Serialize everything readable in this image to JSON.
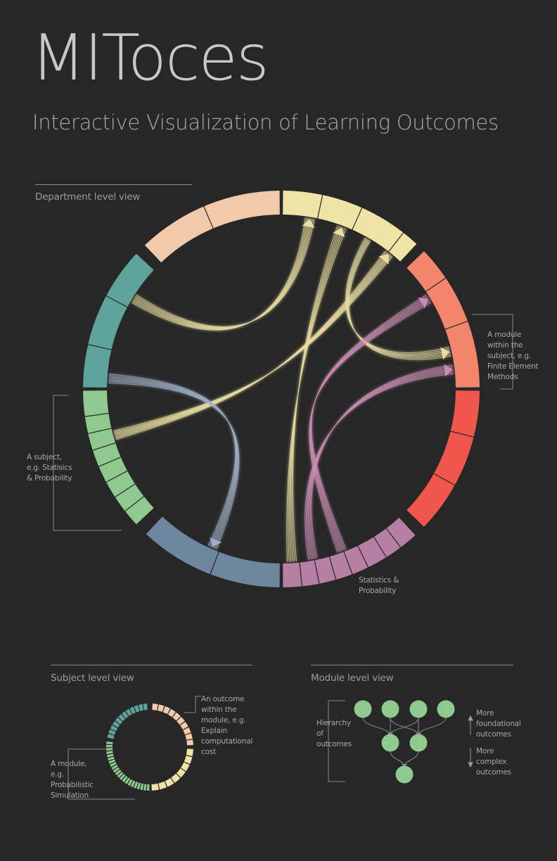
{
  "header": {
    "title": "MIToces",
    "subtitle": "Interactive Visualization of Learning Outcomes"
  },
  "department_view": {
    "label": "Department level view",
    "annotation_module": "A module within the subject, e.g. Finite Element Methods",
    "annotation_subject": "A subject, e.g. Statisics & Probability",
    "arc_label": "Statistics & Probability",
    "colors": {
      "peach": "#f2c9a9",
      "yellow": "#f0e3a6",
      "coral": "#f2856b",
      "red": "#f0564b",
      "mauve": "#b77fa4",
      "slate": "#6f86a0",
      "green": "#8fc98f",
      "teal": "#5fa39d"
    }
  },
  "subject_view": {
    "label": "Subject level view",
    "annotation_outcome": "An outcome within the module, e.g. Explain computational cost",
    "annotation_module": "A module, e.g. Probabilistic Simulation"
  },
  "module_view": {
    "label": "Module level view",
    "hierarchy_label": "Hierarchy of outcomes",
    "more_foundational": "More foundational outcomes",
    "more_complex": "More complex outcomes",
    "node_color": "#8fc98f"
  }
}
